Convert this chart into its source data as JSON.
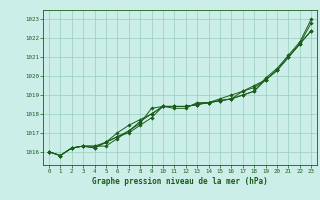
{
  "xlabel": "Graphe pression niveau de la mer (hPa)",
  "xlim": [
    -0.5,
    23.5
  ],
  "ylim": [
    1015.3,
    1023.5
  ],
  "yticks": [
    1016,
    1017,
    1018,
    1019,
    1020,
    1021,
    1022,
    1023
  ],
  "xticks": [
    0,
    1,
    2,
    3,
    4,
    5,
    6,
    7,
    8,
    9,
    10,
    11,
    12,
    13,
    14,
    15,
    16,
    17,
    18,
    19,
    20,
    21,
    22,
    23
  ],
  "bg_color": "#cceee8",
  "grid_color": "#99ccbb",
  "line_color": "#1a5c1a",
  "line1": [
    1016.0,
    1015.8,
    1016.2,
    1016.3,
    1016.3,
    1016.3,
    1016.7,
    1017.1,
    1017.5,
    1018.3,
    1018.4,
    1018.4,
    1018.4,
    1018.5,
    1018.6,
    1018.7,
    1018.8,
    1019.0,
    1019.2,
    1019.9,
    1020.4,
    1021.1,
    1021.8,
    1023.0
  ],
  "line2": [
    1016.0,
    1015.8,
    1016.2,
    1016.3,
    1016.2,
    1016.5,
    1017.0,
    1017.4,
    1017.7,
    1018.0,
    1018.4,
    1018.4,
    1018.4,
    1018.5,
    1018.6,
    1018.7,
    1018.8,
    1019.2,
    1019.4,
    1019.8,
    1020.3,
    1021.0,
    1021.7,
    1022.4
  ],
  "line3": [
    1016.0,
    1015.8,
    1016.2,
    1016.3,
    1016.2,
    1016.5,
    1016.8,
    1017.0,
    1017.4,
    1017.8,
    1018.4,
    1018.3,
    1018.3,
    1018.6,
    1018.6,
    1018.8,
    1019.0,
    1019.2,
    1019.5,
    1019.8,
    1020.3,
    1021.0,
    1021.7,
    1022.4
  ],
  "line4": [
    1016.0,
    1015.8,
    1016.2,
    1016.3,
    1016.3,
    1016.5,
    1016.8,
    1017.1,
    1017.6,
    1018.0,
    1018.4,
    1018.4,
    1018.4,
    1018.5,
    1018.6,
    1018.7,
    1018.8,
    1019.0,
    1019.2,
    1019.8,
    1020.3,
    1021.0,
    1021.7,
    1022.8
  ]
}
